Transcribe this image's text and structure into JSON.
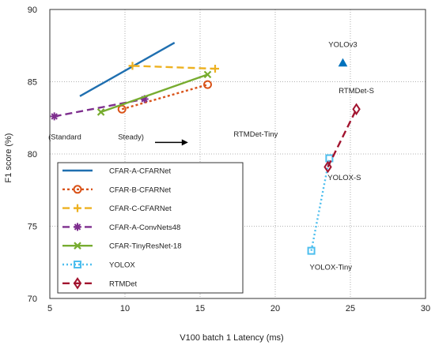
{
  "chart_data": {
    "type": "line",
    "xlabel": "V100 batch 1 Latency (ms)",
    "ylabel": "F1 score (%)",
    "xlim": [
      5,
      30
    ],
    "ylim": [
      70,
      90
    ],
    "x_ticks": [
      5,
      10,
      15,
      20,
      25,
      30
    ],
    "y_ticks": [
      70,
      75,
      80,
      85,
      90
    ],
    "grid": "dotted",
    "legend_placement": "lower-left",
    "series": [
      {
        "name": "CFAR-A-CFARNet",
        "color": "#1f6fb0",
        "dash": "",
        "marker": "none",
        "points": [
          [
            7.0,
            84.0
          ],
          [
            13.3,
            87.7
          ]
        ]
      },
      {
        "name": "CFAR-B-CFARNet",
        "color": "#d95319",
        "dash": "3 3",
        "marker": "circle",
        "points": [
          [
            9.8,
            83.1
          ],
          [
            15.5,
            84.8
          ]
        ]
      },
      {
        "name": "CFAR-C-CFARNet",
        "color": "#edb120",
        "dash": "9 5",
        "marker": "plus",
        "points": [
          [
            10.5,
            86.1
          ],
          [
            16.0,
            85.9
          ]
        ]
      },
      {
        "name": "CFAR-A-ConvNets48",
        "color": "#7e2f8e",
        "dash": "9 5",
        "marker": "asterisk",
        "points": [
          [
            5.3,
            82.6
          ],
          [
            11.3,
            83.8
          ]
        ]
      },
      {
        "name": "CFAR-TinyResNet-18",
        "color": "#77ac30",
        "dash": "",
        "marker": "x",
        "points": [
          [
            8.4,
            82.9
          ],
          [
            15.5,
            85.5
          ]
        ]
      },
      {
        "name": "YOLOX",
        "color": "#4dbeee",
        "dash": "2 3",
        "marker": "square",
        "points": [
          [
            22.4,
            73.3
          ],
          [
            23.6,
            79.7
          ]
        ]
      },
      {
        "name": "RTMDet",
        "color": "#a2142f",
        "dash": "9 5",
        "marker": "diamond",
        "points": [
          [
            23.5,
            79.1
          ],
          [
            25.4,
            83.1
          ]
        ]
      },
      {
        "name": "",
        "color": "#0072bd",
        "dash": "",
        "marker": "triangle",
        "points": [
          [
            24.5,
            86.3
          ]
        ]
      }
    ],
    "annotations": [
      {
        "text": "YOLOv3",
        "x": 24.5,
        "y": 87.4
      },
      {
        "text": "RTMDet-S",
        "x": 25.4,
        "y": 84.2
      },
      {
        "text": "RTMDet-Tiny",
        "x": 18.7,
        "y": 81.2
      },
      {
        "text": "YOLOX-S",
        "x": 24.6,
        "y": 78.2
      },
      {
        "text": "YOLOX-Tiny",
        "x": 23.7,
        "y": 72.0
      },
      {
        "text": "(Standard",
        "x": 6.0,
        "y": 81.0
      },
      {
        "text": "Steady)",
        "x": 10.4,
        "y": 81.0
      }
    ],
    "arrow": {
      "from": [
        12.0,
        80.8
      ],
      "to": [
        14.2,
        80.8
      ]
    }
  }
}
